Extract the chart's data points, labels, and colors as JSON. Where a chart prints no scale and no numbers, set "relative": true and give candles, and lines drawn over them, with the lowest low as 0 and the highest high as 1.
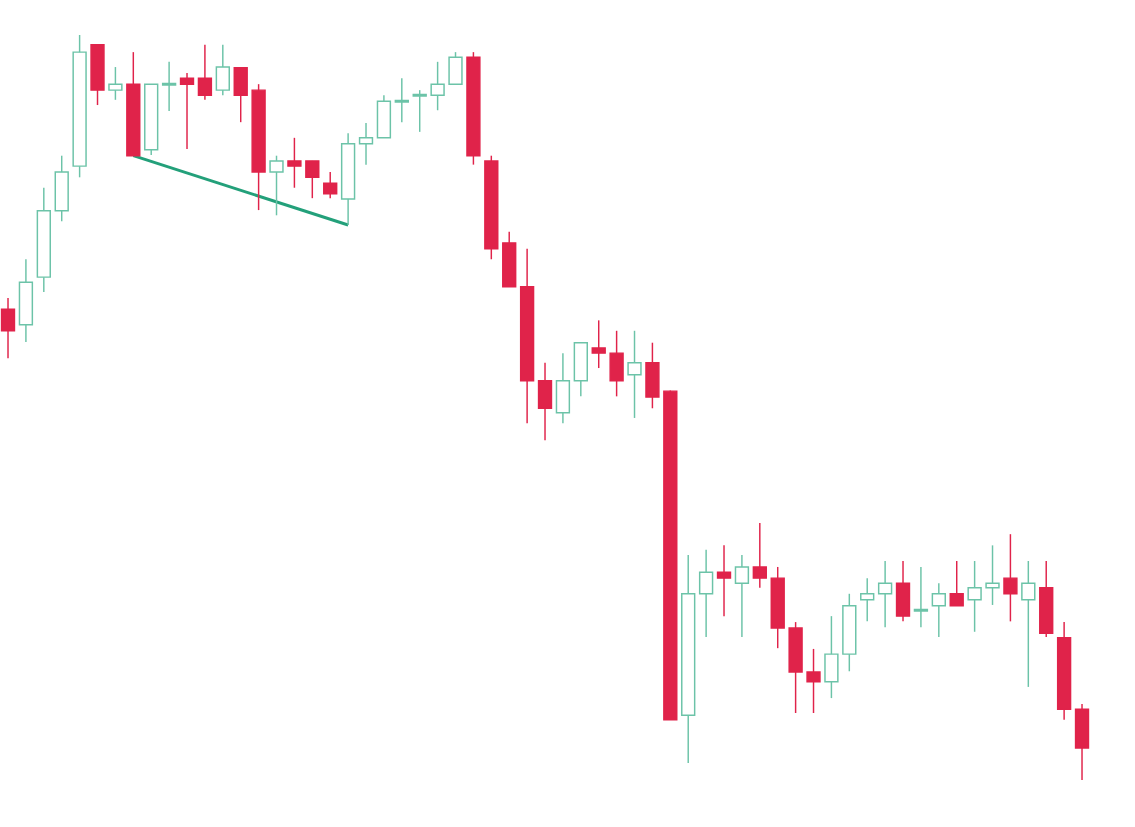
{
  "chart_data": {
    "type": "candlestick",
    "relative": true,
    "categories": [
      null,
      null,
      null,
      null,
      null,
      null,
      null,
      null,
      null,
      null,
      null,
      null,
      null,
      null,
      null,
      null,
      null,
      null,
      null,
      null,
      null,
      null,
      null,
      null,
      null,
      null,
      null,
      null,
      null,
      null,
      null,
      null,
      null,
      null,
      null,
      null,
      null,
      null,
      null,
      null,
      null,
      null,
      null,
      null,
      null,
      null,
      null,
      null,
      null,
      null,
      null,
      null,
      null,
      null,
      null,
      null,
      null,
      null,
      null,
      null,
      null
    ],
    "ohlc": [
      [
        0.632,
        0.647,
        0.566,
        0.603
      ],
      [
        0.611,
        0.699,
        0.588,
        0.668
      ],
      [
        0.675,
        0.795,
        0.655,
        0.764
      ],
      [
        0.764,
        0.838,
        0.75,
        0.816
      ],
      [
        0.824,
        1.0,
        0.809,
        0.977
      ],
      [
        0.987,
        0.987,
        0.906,
        0.926
      ],
      [
        0.926,
        0.957,
        0.913,
        0.934
      ],
      [
        0.934,
        0.977,
        0.838,
        0.838
      ],
      [
        0.846,
        0.934,
        0.839,
        0.934
      ],
      [
        0.933,
        0.964,
        0.898,
        0.934
      ],
      [
        0.942,
        0.949,
        0.847,
        0.934
      ],
      [
        0.942,
        0.987,
        0.913,
        0.919
      ],
      [
        0.926,
        0.987,
        0.919,
        0.957
      ],
      [
        0.956,
        0.956,
        0.883,
        0.919
      ],
      [
        0.926,
        0.934,
        0.765,
        0.816
      ],
      [
        0.816,
        0.838,
        0.758,
        0.831
      ],
      [
        0.831,
        0.862,
        0.795,
        0.824
      ],
      [
        0.831,
        0.831,
        0.781,
        0.809
      ],
      [
        0.801,
        0.816,
        0.781,
        0.787
      ],
      [
        0.78,
        0.868,
        0.745,
        0.854
      ],
      [
        0.854,
        0.882,
        0.826,
        0.862
      ],
      [
        0.862,
        0.919,
        0.862,
        0.911
      ],
      [
        0.91,
        0.942,
        0.883,
        0.911
      ],
      [
        0.918,
        0.926,
        0.87,
        0.919
      ],
      [
        0.919,
        0.964,
        0.899,
        0.934
      ],
      [
        0.934,
        0.977,
        0.934,
        0.97
      ],
      [
        0.97,
        0.977,
        0.826,
        0.838
      ],
      [
        0.831,
        0.838,
        0.699,
        0.713
      ],
      [
        0.721,
        0.736,
        0.662,
        0.662
      ],
      [
        0.662,
        0.713,
        0.479,
        0.536
      ],
      [
        0.536,
        0.56,
        0.456,
        0.499
      ],
      [
        0.493,
        0.573,
        0.479,
        0.536
      ],
      [
        0.536,
        0.587,
        0.515,
        0.587
      ],
      [
        0.58,
        0.617,
        0.553,
        0.573
      ],
      [
        0.573,
        0.603,
        0.515,
        0.536
      ],
      [
        0.544,
        0.603,
        0.486,
        0.56
      ],
      [
        0.56,
        0.587,
        0.499,
        0.514
      ],
      [
        0.522,
        0.523,
        0.081,
        0.081
      ],
      [
        0.087,
        0.302,
        0.023,
        0.25
      ],
      [
        0.25,
        0.309,
        0.192,
        0.279
      ],
      [
        0.279,
        0.315,
        0.22,
        0.271
      ],
      [
        0.264,
        0.302,
        0.192,
        0.286
      ],
      [
        0.286,
        0.345,
        0.258,
        0.271
      ],
      [
        0.271,
        0.286,
        0.177,
        0.204
      ],
      [
        0.204,
        0.212,
        0.09,
        0.145
      ],
      [
        0.145,
        0.176,
        0.09,
        0.132
      ],
      [
        0.132,
        0.22,
        0.11,
        0.169
      ],
      [
        0.169,
        0.25,
        0.146,
        0.234
      ],
      [
        0.242,
        0.271,
        0.213,
        0.25
      ],
      [
        0.25,
        0.294,
        0.205,
        0.264
      ],
      [
        0.264,
        0.294,
        0.213,
        0.22
      ],
      [
        0.227,
        0.286,
        0.205,
        0.228
      ],
      [
        0.234,
        0.264,
        0.192,
        0.25
      ],
      [
        0.25,
        0.294,
        0.234,
        0.234
      ],
      [
        0.242,
        0.294,
        0.199,
        0.258
      ],
      [
        0.258,
        0.315,
        0.235,
        0.264
      ],
      [
        0.271,
        0.33,
        0.213,
        0.25
      ],
      [
        0.242,
        0.294,
        0.125,
        0.264
      ],
      [
        0.258,
        0.294,
        0.192,
        0.197
      ],
      [
        0.191,
        0.212,
        0.081,
        0.095
      ],
      [
        0.095,
        0.102,
        0.0,
        0.043
      ]
    ],
    "colors": [
      "#e0234a",
      "#6cc3a8",
      "#6cc3a8",
      "#6cc3a8",
      "#6cc3a8",
      "#e0234a",
      "#6cc3a8",
      "#e0234a",
      "#6cc3a8",
      "#6cc3a8",
      "#e0234a",
      "#e0234a",
      "#6cc3a8",
      "#e0234a",
      "#e0234a",
      "#6cc3a8",
      "#e0234a",
      "#e0234a",
      "#e0234a",
      "#6cc3a8",
      "#6cc3a8",
      "#6cc3a8",
      "#6cc3a8",
      "#6cc3a8",
      "#6cc3a8",
      "#6cc3a8",
      "#e0234a",
      "#e0234a",
      "#e0234a",
      "#e0234a",
      "#e0234a",
      "#6cc3a8",
      "#6cc3a8",
      "#e0234a",
      "#e0234a",
      "#6cc3a8",
      "#e0234a",
      "#e0234a",
      "#6cc3a8",
      "#6cc3a8",
      "#e0234a",
      "#6cc3a8",
      "#e0234a",
      "#e0234a",
      "#e0234a",
      "#e0234a",
      "#6cc3a8",
      "#6cc3a8",
      "#6cc3a8",
      "#6cc3a8",
      "#e0234a",
      "#6cc3a8",
      "#6cc3a8",
      "#e0234a",
      "#6cc3a8",
      "#6cc3a8",
      "#e0234a",
      "#6cc3a8",
      "#e0234a",
      "#e0234a",
      "#e0234a"
    ],
    "series": [
      {
        "type": "line",
        "values": [
          null,
          null,
          null,
          null,
          null,
          null,
          null,
          0.838,
          null,
          null,
          null,
          null,
          null,
          null,
          null,
          null,
          null,
          null,
          null,
          0.745,
          null,
          null,
          null,
          null,
          null,
          null,
          null,
          null,
          null,
          null,
          null,
          null,
          null,
          null,
          null,
          null,
          null,
          null,
          null,
          null,
          null,
          null,
          null,
          null,
          null,
          null,
          null,
          null,
          null,
          null,
          null,
          null,
          null,
          null,
          null,
          null,
          null,
          null,
          null,
          null,
          null
        ],
        "color": "#23a07a"
      }
    ]
  }
}
